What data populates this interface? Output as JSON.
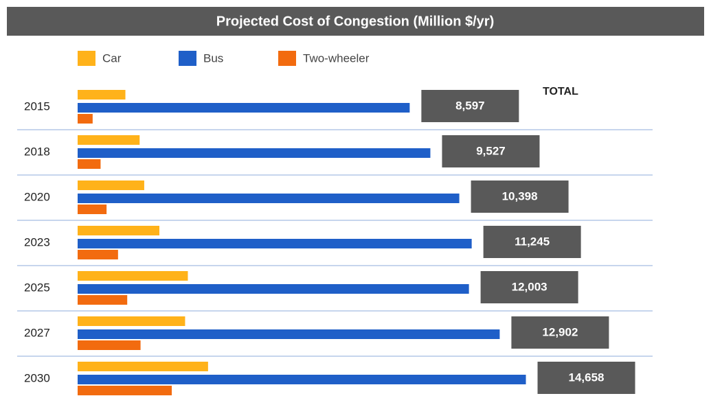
{
  "chart_data": {
    "type": "bar",
    "orientation": "horizontal",
    "title": "Projected Cost of Congestion (Million $/yr)",
    "categories": [
      "2015",
      "2018",
      "2020",
      "2023",
      "2025",
      "2027",
      "2030"
    ],
    "series": [
      {
        "name": "Car",
        "color": "#ffb21a",
        "values": [
          1040,
          1350,
          1450,
          1780,
          2400,
          2340,
          2840
        ]
      },
      {
        "name": "Bus",
        "color": "#1f5fc8",
        "values": [
          7230,
          7680,
          8310,
          8580,
          8520,
          9190,
          9760
        ]
      },
      {
        "name": "Two-wheeler",
        "color": "#f26b0f",
        "values": [
          327,
          500,
          630,
          880,
          1080,
          1370,
          2050
        ]
      }
    ],
    "totals_title": "TOTAL",
    "totals": {
      "values": [
        8597,
        9527,
        10398,
        11245,
        12003,
        12902,
        14658
      ],
      "value_labels": [
        "8,597",
        "9,527",
        "10,398",
        "11,245",
        "12,003",
        "12,902",
        "14,658"
      ]
    }
  }
}
